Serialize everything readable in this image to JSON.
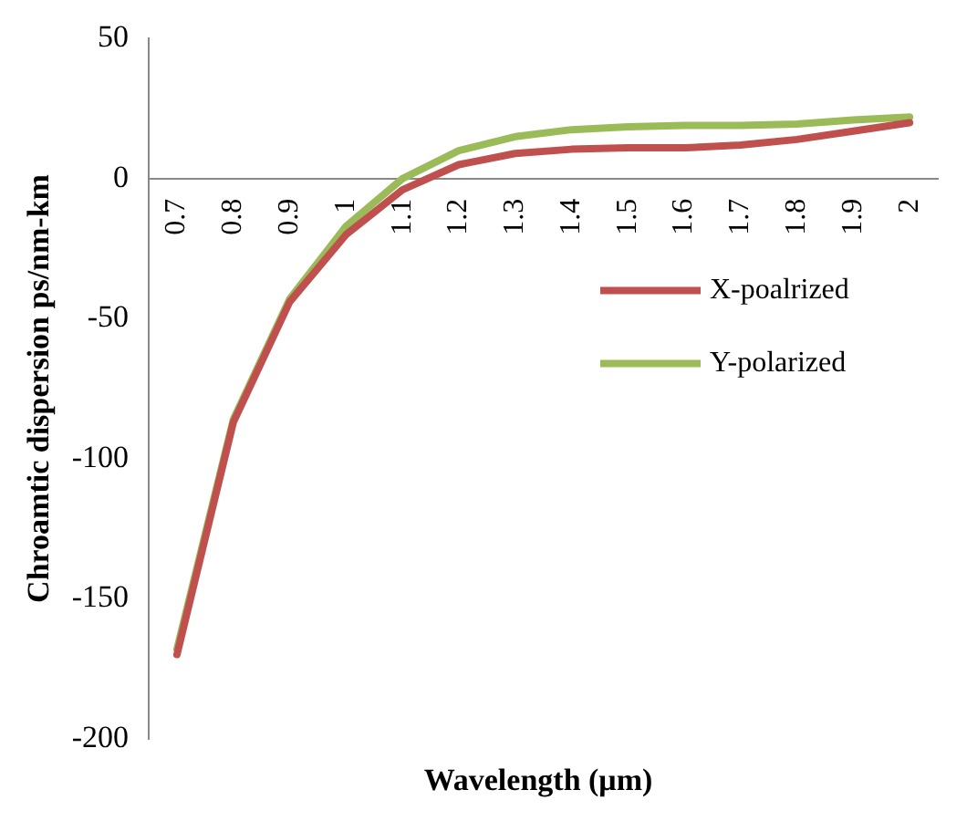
{
  "chart_data": {
    "type": "line",
    "xlabel": "Wavelength (μm)",
    "ylabel": "Chroamtic dispersion ps/nm-km",
    "categories": [
      "0.7",
      "0.8",
      "0.9",
      "1",
      "1.1",
      "1.2",
      "1.3",
      "1.4",
      "1.5",
      "1.6",
      "1.7",
      "1.8",
      "1.9",
      "2"
    ],
    "series": [
      {
        "name": "X-poalrized",
        "color": "#c0504d",
        "values": [
          -170,
          -87,
          -44,
          -20,
          -4,
          5,
          9,
          10.5,
          11,
          11,
          12,
          14,
          17,
          20
        ]
      },
      {
        "name": "Y-polarized",
        "color": "#9bbb59",
        "values": [
          -168,
          -86,
          -43,
          -17,
          0,
          10,
          15,
          17.5,
          18.5,
          19,
          19,
          19.5,
          21,
          22
        ]
      }
    ],
    "ylim": [
      -200,
      50
    ],
    "yticks": [
      -200,
      -150,
      -100,
      -50,
      0,
      50
    ],
    "grid": false,
    "legend": "right",
    "marker": "none",
    "line_style": "solid"
  }
}
